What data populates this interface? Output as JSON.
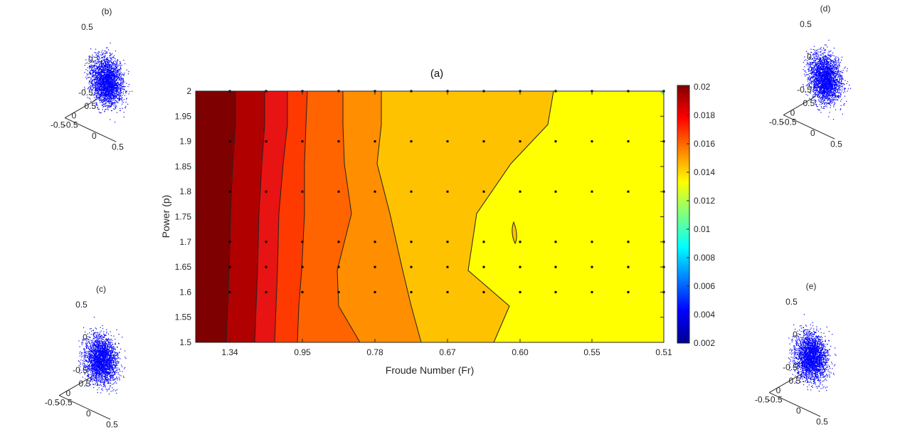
{
  "chart_data": [
    {
      "id": "a",
      "type": "heatmap",
      "title": "(a)",
      "xlabel": "Froude Number (Fr)",
      "ylabel": "Power (p)",
      "x_tick_labels": [
        "1.34",
        "0.95",
        "0.78",
        "0.67",
        "0.60",
        "0.55",
        "0.51"
      ],
      "y_ticks": [
        1.5,
        1.55,
        1.6,
        1.65,
        1.7,
        1.75,
        1.8,
        1.85,
        1.9,
        1.95,
        2
      ],
      "y_tick_labels": [
        "1.5",
        "1.55",
        "1.6",
        "1.65",
        "1.7",
        "1.75",
        "1.8",
        "1.85",
        "1.9",
        "1.95",
        "2"
      ],
      "ylim": [
        1.5,
        2.0
      ],
      "colorbar": {
        "range": [
          0.002,
          0.02
        ],
        "ticks": [
          "0.02",
          "0.018",
          "0.016",
          "0.014",
          "0.012",
          "0.01",
          "0.008",
          "0.006",
          "0.004",
          "0.002"
        ],
        "colormap": "jet"
      },
      "bands": [
        {
          "approx_fr_range": ">1.34",
          "value": 0.0195,
          "color": "#7f0000"
        },
        {
          "approx_fr_range": "1.34-1.15",
          "value": 0.0185,
          "color": "#b00000"
        },
        {
          "approx_fr_range": "1.15-1.05",
          "value": 0.0175,
          "color": "#e81313"
        },
        {
          "approx_fr_range": "1.05-0.95",
          "value": 0.0168,
          "color": "#ff3a00"
        },
        {
          "approx_fr_range": "0.95-0.85",
          "value": 0.016,
          "color": "#ff6400"
        },
        {
          "approx_fr_range": "0.85-0.72",
          "value": 0.0152,
          "color": "#ff8e00"
        },
        {
          "approx_fr_range": "0.72-0.62",
          "value": 0.0143,
          "color": "#ffc200"
        },
        {
          "approx_fr_range": "<0.62",
          "value": 0.0135,
          "color": "#ffff00"
        }
      ],
      "sample_points_y": [
        1.6,
        1.65,
        1.7,
        1.8,
        1.9,
        2.0
      ],
      "sample_points_per_row": 14,
      "grid": false
    },
    {
      "id": "b",
      "type": "scatter",
      "title": "(b)",
      "projection": "3d",
      "tick_labels_z": [
        "0.5",
        "0",
        "-0.5"
      ],
      "tick_labels_x": [
        "0.5",
        "0",
        "-0.5"
      ],
      "tick_labels_y": [
        "-0.5",
        "0",
        "0.5"
      ],
      "color": "#0000ff"
    },
    {
      "id": "c",
      "type": "scatter",
      "title": "(c)",
      "projection": "3d",
      "tick_labels_z": [
        "0.5",
        "0",
        "-0.5"
      ],
      "tick_labels_x": [
        "0.5",
        "0",
        "-0.5"
      ],
      "tick_labels_y": [
        "-0.5",
        "0",
        "0.5"
      ],
      "color": "#0000ff"
    },
    {
      "id": "d",
      "type": "scatter",
      "title": "(d)",
      "projection": "3d",
      "tick_labels_z": [
        "0.5",
        "0",
        "-0.5"
      ],
      "tick_labels_x": [
        "0.5",
        "0",
        "-0.5"
      ],
      "tick_labels_y": [
        "-0.5",
        "0",
        "0.5"
      ],
      "color": "#0000ff"
    },
    {
      "id": "e",
      "type": "scatter",
      "title": "(e)",
      "projection": "3d",
      "tick_labels_z": [
        "0.5",
        "0",
        "-0.5"
      ],
      "tick_labels_x": [
        "0.5",
        "0",
        "-0.5"
      ],
      "tick_labels_y": [
        "-0.5",
        "0",
        "0.5"
      ],
      "color": "#0000ff"
    }
  ]
}
